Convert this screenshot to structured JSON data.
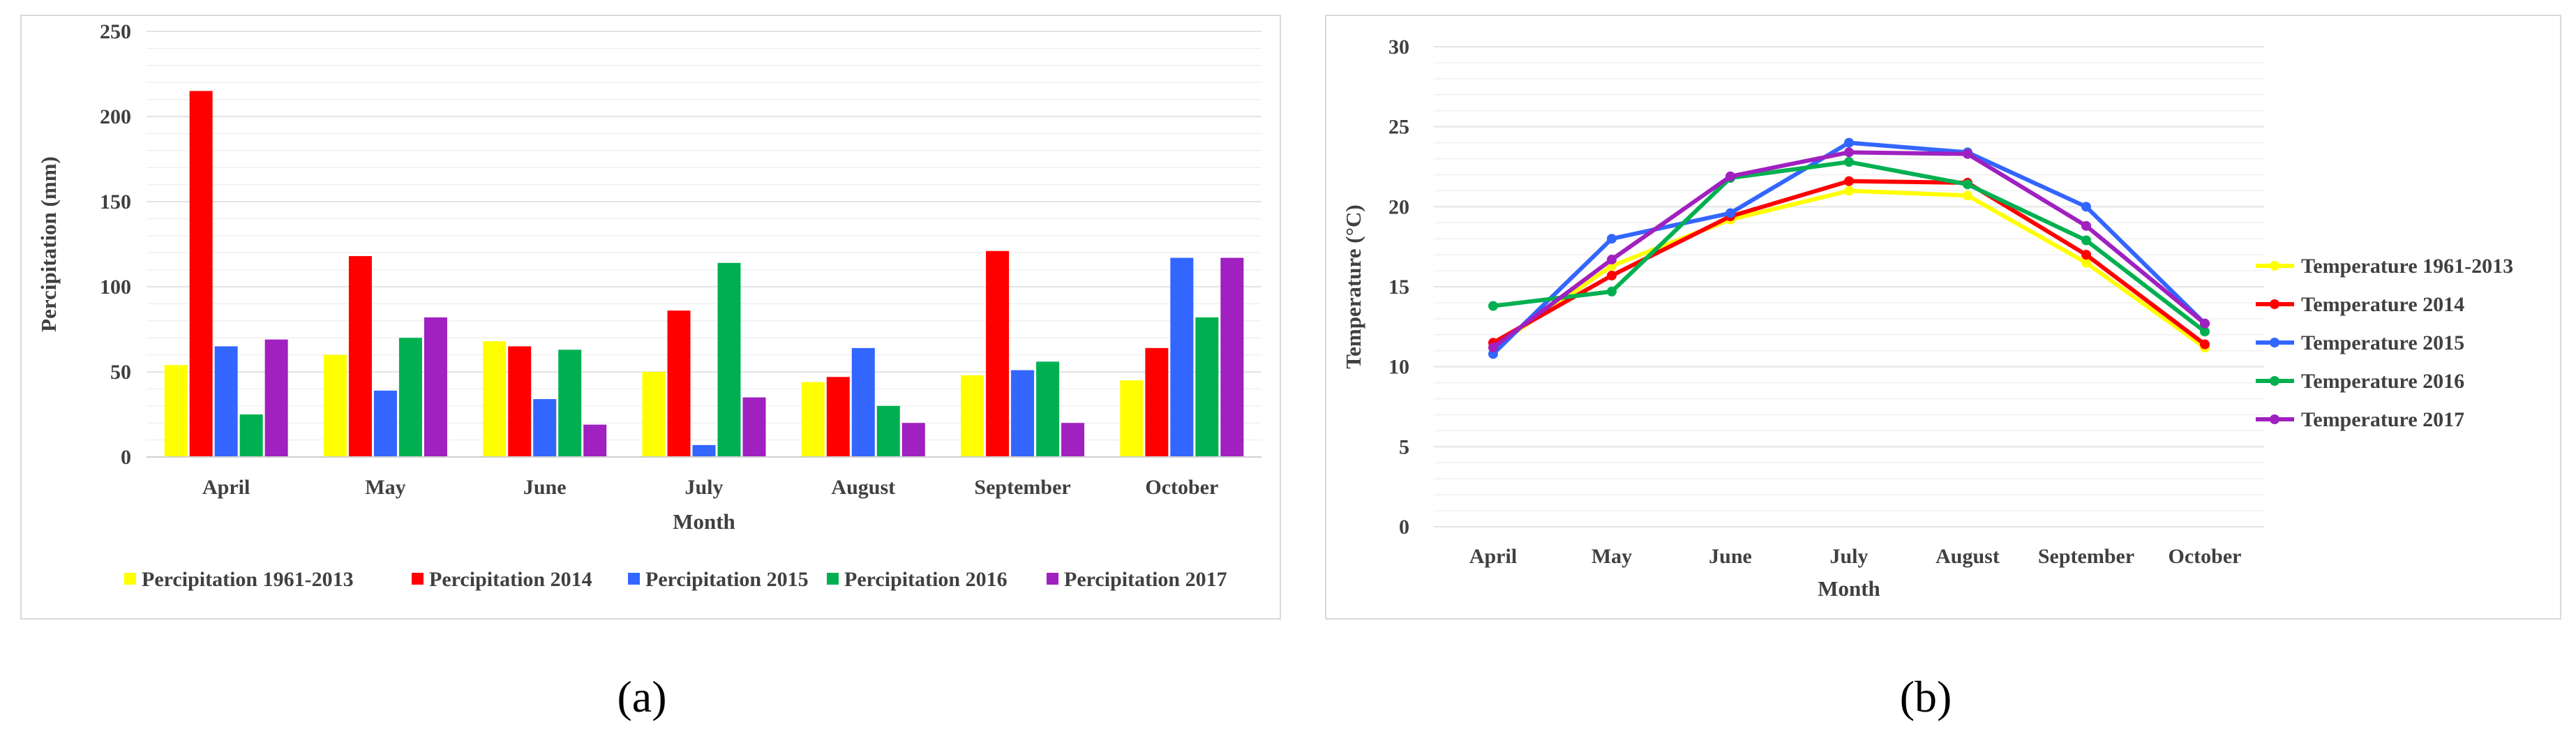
{
  "chart_data": [
    {
      "type": "bar",
      "panel_label": "(a)",
      "xlabel": "Month",
      "ylabel": "Percipitation (mm)",
      "ylim": [
        0,
        250
      ],
      "yticks": [
        0,
        50,
        100,
        150,
        200,
        250
      ],
      "grid": true,
      "legend_position": "bottom",
      "categories": [
        "April",
        "May",
        "June",
        "July",
        "August",
        "September",
        "October"
      ],
      "series": [
        {
          "name": "Percipitation 1961-2013",
          "color": "#ffff00",
          "values": [
            54,
            60,
            68,
            50,
            44,
            48,
            45
          ]
        },
        {
          "name": "Percipitation 2014",
          "color": "#ff0000",
          "values": [
            215,
            118,
            65,
            86,
            47,
            121,
            64
          ]
        },
        {
          "name": "Percipitation 2015",
          "color": "#3366ff",
          "values": [
            65,
            39,
            34,
            7,
            64,
            51,
            117
          ]
        },
        {
          "name": "Percipitation 2016",
          "color": "#00b050",
          "values": [
            25,
            70,
            63,
            114,
            30,
            56,
            82
          ]
        },
        {
          "name": "Percipitation 2017",
          "color": "#a020c0",
          "values": [
            69,
            82,
            19,
            35,
            20,
            20,
            117
          ]
        }
      ]
    },
    {
      "type": "line",
      "panel_label": "(b)",
      "xlabel": "Month",
      "ylabel": "Temperature (°C)",
      "ylim": [
        0,
        30
      ],
      "yticks": [
        0,
        5,
        10,
        15,
        20,
        25,
        30
      ],
      "grid": true,
      "legend_position": "right",
      "categories": [
        "April",
        "May",
        "June",
        "July",
        "August",
        "September",
        "October"
      ],
      "series": [
        {
          "name": "Temperature 1961-2013",
          "color": "#ffff00",
          "values": [
            11.2,
            16.3,
            19.2,
            21.0,
            20.7,
            16.5,
            11.2
          ]
        },
        {
          "name": "Temperature 2014",
          "color": "#ff0000",
          "values": [
            11.5,
            15.7,
            19.4,
            21.6,
            21.5,
            17.0,
            11.4
          ]
        },
        {
          "name": "Temperature 2015",
          "color": "#3366ff",
          "values": [
            10.8,
            18.0,
            19.6,
            24.0,
            23.4,
            20.0,
            12.7
          ]
        },
        {
          "name": "Temperature 2016",
          "color": "#00b050",
          "values": [
            13.8,
            14.7,
            21.8,
            22.8,
            21.4,
            17.9,
            12.2
          ]
        },
        {
          "name": "Temperature 2017",
          "color": "#a020c0",
          "values": [
            11.2,
            16.7,
            21.9,
            23.4,
            23.3,
            18.8,
            12.7
          ]
        }
      ]
    }
  ]
}
